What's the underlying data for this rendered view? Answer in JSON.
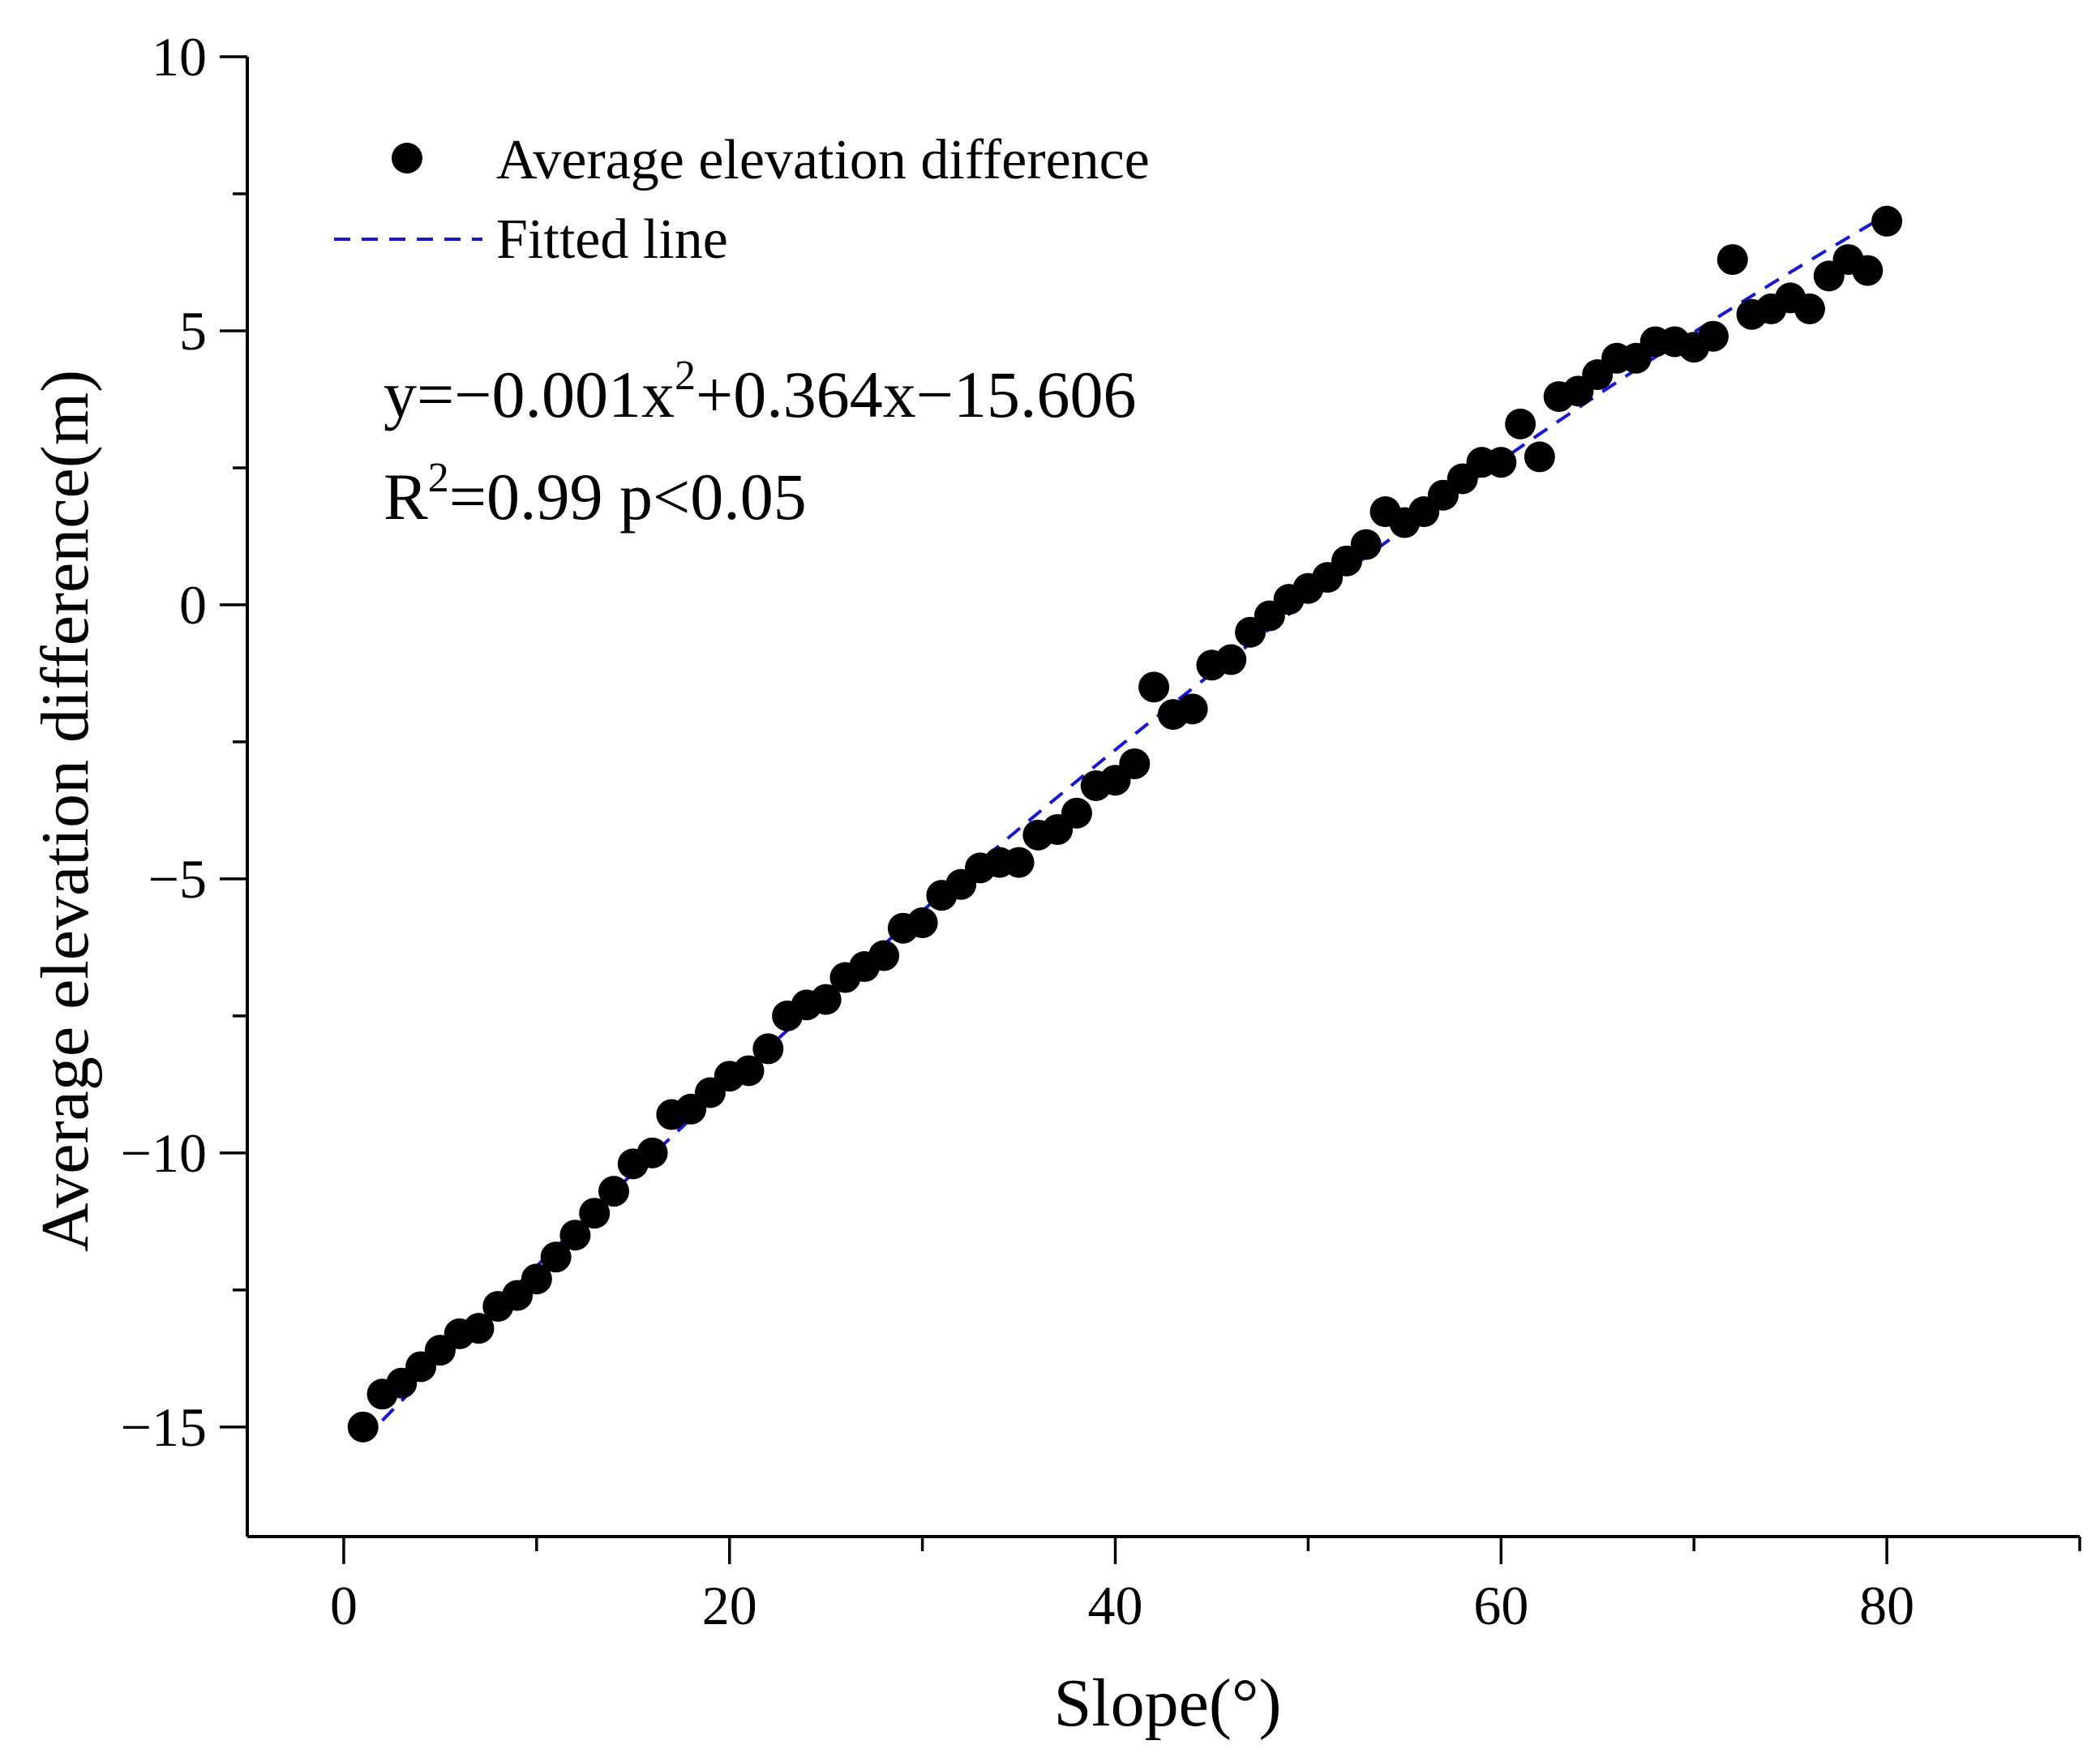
{
  "chart_data": {
    "type": "scatter",
    "xlabel": "Slope(°)",
    "ylabel": "Average elevation difference(m)",
    "xlim": [
      -5,
      90
    ],
    "ylim": [
      -17,
      10
    ],
    "xticks": [
      0,
      20,
      40,
      60,
      80
    ],
    "xtick_labels": [
      "0",
      "20",
      "40",
      "60",
      "80"
    ],
    "yticks": [
      -15,
      -10,
      -5,
      0,
      5,
      10
    ],
    "ytick_labels": [
      "−15",
      "−10",
      "−5",
      "0",
      "5",
      "10"
    ],
    "grid": false,
    "legend_position": "top-left",
    "legend": {
      "points_label": "Average elevation difference",
      "line_label": "Fitted line"
    },
    "annotations": {
      "equation_prefix": "y=−0.001x",
      "equation_sup": "2",
      "equation_suffix": "+0.364x−15.606",
      "r2_prefix": "R",
      "r2_sup": "2",
      "r2_suffix": "=0.99 p<0.05"
    },
    "fit": {
      "a": -0.001,
      "b": 0.364,
      "c": -15.606,
      "x_range": [
        1,
        80
      ]
    },
    "colors": {
      "points": "#000000",
      "fit_line": "#1515e6"
    },
    "series": [
      {
        "name": "Average elevation difference",
        "points": [
          [
            1,
            -15.0
          ],
          [
            2,
            -14.4
          ],
          [
            3,
            -14.2
          ],
          [
            4,
            -13.9
          ],
          [
            5,
            -13.6
          ],
          [
            6,
            -13.3
          ],
          [
            7,
            -13.2
          ],
          [
            8,
            -12.8
          ],
          [
            9,
            -12.6
          ],
          [
            10,
            -12.3
          ],
          [
            11,
            -11.9
          ],
          [
            12,
            -11.5
          ],
          [
            13,
            -11.1
          ],
          [
            14,
            -10.7
          ],
          [
            15,
            -10.2
          ],
          [
            16,
            -10.0
          ],
          [
            17,
            -9.3
          ],
          [
            18,
            -9.2
          ],
          [
            19,
            -8.9
          ],
          [
            20,
            -8.6
          ],
          [
            21,
            -8.5
          ],
          [
            22,
            -8.1
          ],
          [
            23,
            -7.5
          ],
          [
            24,
            -7.3
          ],
          [
            25,
            -7.2
          ],
          [
            26,
            -6.8
          ],
          [
            27,
            -6.6
          ],
          [
            28,
            -6.4
          ],
          [
            29,
            -5.9
          ],
          [
            30,
            -5.8
          ],
          [
            31,
            -5.3
          ],
          [
            32,
            -5.1
          ],
          [
            33,
            -4.8
          ],
          [
            34,
            -4.7
          ],
          [
            35,
            -4.7
          ],
          [
            36,
            -4.2
          ],
          [
            37,
            -4.1
          ],
          [
            38,
            -3.8
          ],
          [
            39,
            -3.3
          ],
          [
            40,
            -3.2
          ],
          [
            41,
            -2.9
          ],
          [
            42,
            -1.5
          ],
          [
            43,
            -2.0
          ],
          [
            44,
            -1.9
          ],
          [
            45,
            -1.1
          ],
          [
            46,
            -1.0
          ],
          [
            47,
            -0.5
          ],
          [
            48,
            -0.2
          ],
          [
            49,
            0.1
          ],
          [
            50,
            0.3
          ],
          [
            51,
            0.5
          ],
          [
            52,
            0.8
          ],
          [
            53,
            1.1
          ],
          [
            54,
            1.7
          ],
          [
            55,
            1.5
          ],
          [
            56,
            1.7
          ],
          [
            57,
            2.0
          ],
          [
            58,
            2.3
          ],
          [
            59,
            2.6
          ],
          [
            60,
            2.6
          ],
          [
            61,
            3.3
          ],
          [
            62,
            2.7
          ],
          [
            63,
            3.8
          ],
          [
            64,
            3.9
          ],
          [
            65,
            4.2
          ],
          [
            66,
            4.5
          ],
          [
            67,
            4.5
          ],
          [
            68,
            4.8
          ],
          [
            69,
            4.8
          ],
          [
            70,
            4.7
          ],
          [
            71,
            4.9
          ],
          [
            72,
            6.3
          ],
          [
            73,
            5.3
          ],
          [
            74,
            5.4
          ],
          [
            75,
            5.6
          ],
          [
            76,
            5.4
          ],
          [
            77,
            6.0
          ],
          [
            78,
            6.3
          ],
          [
            79,
            6.1
          ],
          [
            80,
            7.0
          ]
        ]
      }
    ]
  }
}
